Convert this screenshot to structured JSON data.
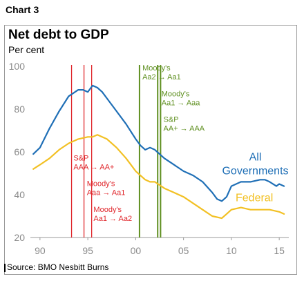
{
  "chart_label": "Chart 3",
  "source": "Source: BMO Nesbitt Burns",
  "colors": {
    "all_governments": "#1f6fb6",
    "federal": "#f2c023",
    "rating_down": "#e0262b",
    "rating_up": "#5e8f1f",
    "axis_text": "#8a8a8a"
  },
  "chart_data": {
    "type": "line",
    "title": "Net debt to GDP",
    "subtitle": "Per cent",
    "xlabel": "",
    "ylabel": "",
    "xlim": [
      1989,
      2016
    ],
    "ylim": [
      20,
      100
    ],
    "x_ticks": [
      {
        "year": 1990,
        "label": "90"
      },
      {
        "year": 1995,
        "label": "95"
      },
      {
        "year": 2000,
        "label": "00"
      },
      {
        "year": 2005,
        "label": "05"
      },
      {
        "year": 2010,
        "label": "10"
      },
      {
        "year": 2015,
        "label": "15"
      }
    ],
    "y_ticks": [
      20,
      40,
      60,
      80,
      100
    ],
    "series": [
      {
        "name": "All Governments",
        "color": "#1f6fb6",
        "x": [
          1989.3,
          1990,
          1991,
          1992,
          1993,
          1994,
          1994.5,
          1995,
          1995.5,
          1996,
          1996.5,
          1997,
          1998,
          1999,
          2000,
          2000.5,
          2001,
          2001.5,
          2002,
          2003,
          2004,
          2005,
          2006,
          2007,
          2008,
          2008.5,
          2009,
          2009.5,
          2010,
          2011,
          2012,
          2013,
          2013.5,
          2014,
          2014.7,
          2015,
          2015.5
        ],
        "values": [
          59,
          62,
          71,
          79,
          86,
          89,
          89,
          88,
          91,
          90,
          88,
          85,
          79,
          73,
          66,
          63,
          61,
          62,
          61,
          57,
          54,
          51,
          49,
          46,
          41,
          38,
          37,
          39,
          44,
          46,
          46,
          47,
          47,
          46,
          44,
          45,
          44
        ]
      },
      {
        "name": "Federal",
        "color": "#f2c023",
        "x": [
          1989.3,
          1990,
          1991,
          1992,
          1993,
          1994,
          1995,
          1995.5,
          1996,
          1997,
          1998,
          1999,
          2000,
          2001,
          2001.5,
          2002,
          2003,
          2004,
          2005,
          2006,
          2007,
          2008,
          2009,
          2009.5,
          2010,
          2011,
          2012,
          2013,
          2014,
          2015,
          2015.5
        ],
        "values": [
          52,
          54,
          57,
          61,
          64,
          66,
          67,
          67,
          68,
          66,
          62,
          57,
          51,
          47,
          46,
          46,
          43,
          41,
          39,
          36,
          33,
          30,
          29,
          31,
          33,
          34,
          33,
          33,
          33,
          32,
          31
        ]
      }
    ],
    "rating_events": [
      {
        "year": 1993.3,
        "kind": "downgrade",
        "label": ""
      },
      {
        "year": 1994.6,
        "kind": "downgrade",
        "label": ""
      },
      {
        "year": 1995.4,
        "kind": "downgrade",
        "label": ""
      },
      {
        "year": 2000.4,
        "kind": "upgrade",
        "label": ""
      },
      {
        "year": 2002.3,
        "kind": "upgrade",
        "label": ""
      },
      {
        "year": 2002.6,
        "kind": "upgrade",
        "label": ""
      }
    ],
    "annotations": [
      {
        "id": "sp-down",
        "lines": [
          "S&P",
          "AAA → AA+"
        ],
        "color": "#e0262b",
        "anchor_year": 1993.5,
        "anchor_value": 56
      },
      {
        "id": "moodys-down1",
        "lines": [
          "Moody's",
          "Aaa → Aa1"
        ],
        "color": "#e0262b",
        "anchor_year": 1994.9,
        "anchor_value": 44
      },
      {
        "id": "moodys-down2",
        "lines": [
          "Moody's",
          "Aa1 → Aa2"
        ],
        "color": "#e0262b",
        "anchor_year": 1995.6,
        "anchor_value": 32
      },
      {
        "id": "moodys-up1",
        "lines": [
          "Moody's",
          "Aa2 → Aa1"
        ],
        "color": "#5e8f1f",
        "anchor_year": 2000.7,
        "anchor_value": 98
      },
      {
        "id": "moodys-up2",
        "lines": [
          "Moody's",
          "Aa1 → Aaa"
        ],
        "color": "#5e8f1f",
        "anchor_year": 2002.7,
        "anchor_value": 86
      },
      {
        "id": "sp-up",
        "lines": [
          "S&P",
          "AA+ → AAA"
        ],
        "color": "#5e8f1f",
        "anchor_year": 2002.9,
        "anchor_value": 74
      }
    ],
    "series_labels": [
      {
        "lines": [
          "All",
          "Governments"
        ],
        "color": "#1f6fb6",
        "anchor_year": 2012.5,
        "anchor_value": 56,
        "align": "middle"
      },
      {
        "lines": [
          "Federal"
        ],
        "color": "#f2c023",
        "anchor_year": 2012.4,
        "anchor_value": 37,
        "align": "middle"
      }
    ],
    "grid": false,
    "legend": "none"
  }
}
